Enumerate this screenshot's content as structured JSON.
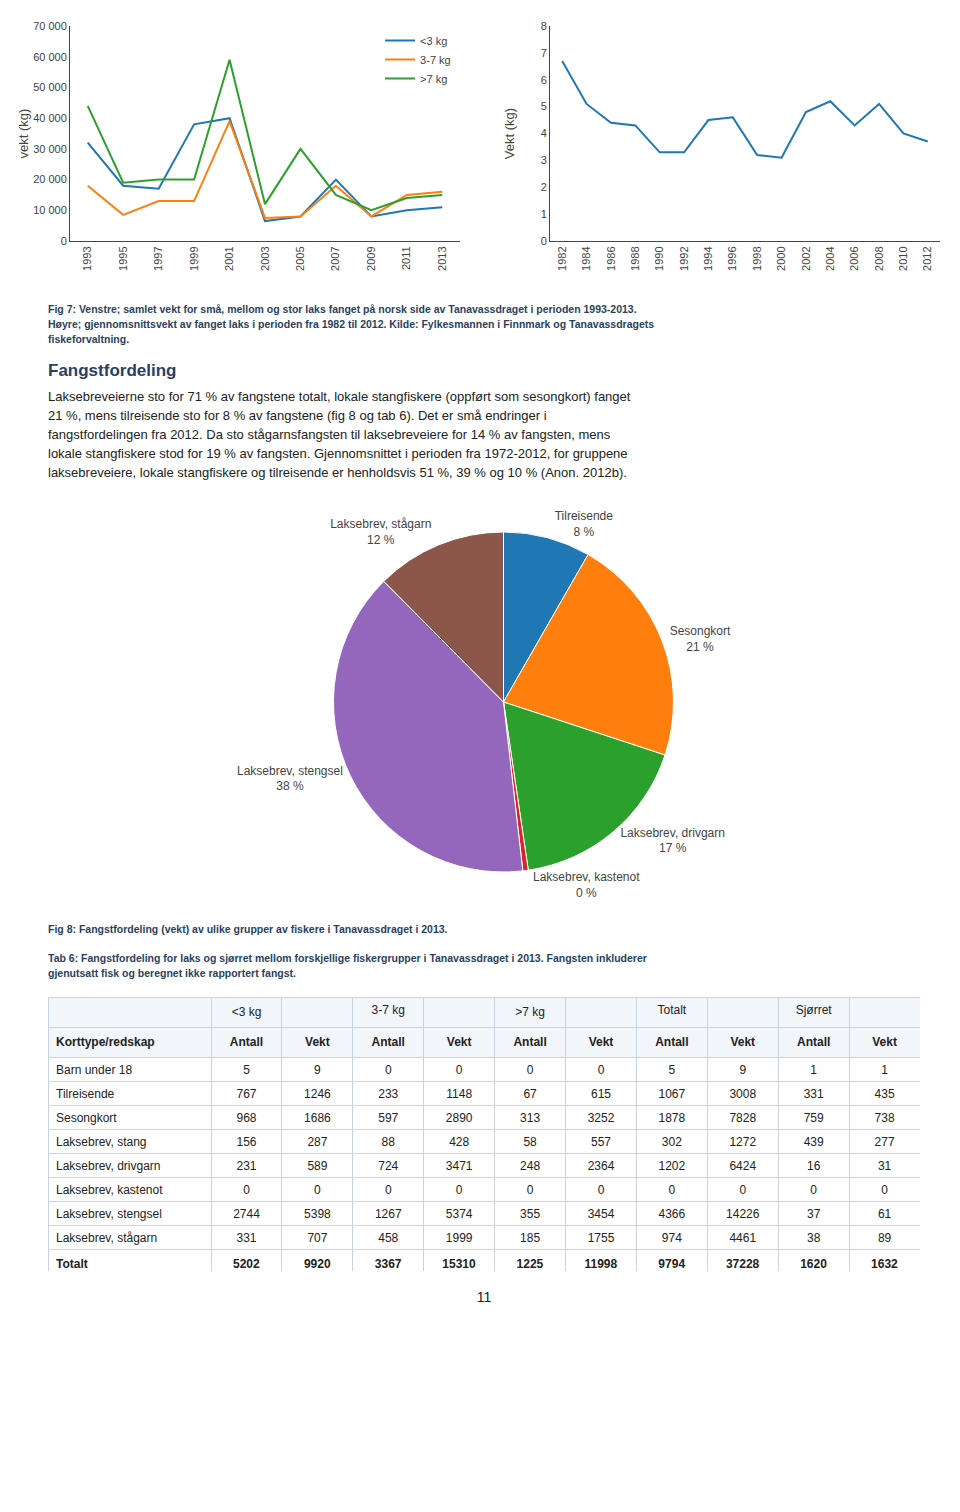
{
  "chart_data": [
    {
      "type": "line",
      "x": [
        1993,
        1995,
        1997,
        1999,
        2001,
        2003,
        2005,
        2007,
        2009,
        2011,
        2013
      ],
      "series": [
        {
          "name": "<3 kg",
          "values": [
            32000,
            18000,
            17000,
            38000,
            40000,
            6500,
            8000,
            20000,
            8000,
            10000,
            11000
          ]
        },
        {
          "name": "3-7 kg",
          "values": [
            18000,
            8500,
            13000,
            13000,
            39000,
            7500,
            8000,
            18000,
            8000,
            15000,
            16000
          ]
        },
        {
          "name": ">7 kg",
          "values": [
            44000,
            19000,
            20000,
            20000,
            59000,
            12000,
            30000,
            15000,
            10000,
            14000,
            15000
          ]
        }
      ],
      "ylabel": "vekt (kg)",
      "xlim": [
        1992,
        2014
      ],
      "xticks": [
        1993,
        1995,
        1997,
        1999,
        2001,
        2003,
        2005,
        2007,
        2009,
        2011,
        2013
      ],
      "ylim": [
        0,
        70000
      ],
      "yticks": [
        0,
        {
          "value": 10000,
          "label": "10 000"
        },
        {
          "value": 20000,
          "label": "20 000"
        },
        {
          "value": 30000,
          "label": "30 000"
        },
        {
          "value": 40000,
          "label": "40 000"
        },
        {
          "value": 50000,
          "label": "50 000"
        },
        {
          "value": 60000,
          "label": "60 000"
        },
        {
          "value": 70000,
          "label": "70 000"
        }
      ],
      "legend": "upper right",
      "grid": false
    },
    {
      "type": "line",
      "x": [
        1982,
        1984,
        1986,
        1988,
        1990,
        1992,
        1994,
        1996,
        1998,
        2000,
        2002,
        2004,
        2006,
        2008,
        2010,
        2012
      ],
      "series": [
        {
          "values": [
            6.7,
            5.1,
            4.4,
            4.3,
            3.3,
            3.3,
            4.5,
            4.6,
            3.2,
            3.1,
            4.8,
            5.2,
            4.3,
            5.1,
            4.0,
            3.7
          ]
        }
      ],
      "ylabel": "Vekt (kg)",
      "xlim": [
        1981,
        2013
      ],
      "xticks": [
        1982,
        1984,
        1986,
        1988,
        1990,
        1992,
        1994,
        1996,
        1998,
        2000,
        2002,
        2004,
        2006,
        2008,
        2010,
        2012
      ],
      "ylim": [
        0,
        8
      ],
      "yticks": [
        0,
        1,
        2,
        3,
        4,
        5,
        6,
        7,
        8
      ],
      "grid": false,
      "annotations": [
        "Fig 7: Venstre; samlet vekt for små, mellom og stor laks fanget på norsk side av Tanavassdraget i perioden 1993-2013.",
        "Høyre; gjennomsnittsvekt av fanget laks i perioden fra 1982 til 2012. Kilde: Fylkesmannen i Finnmark og Tanavassdragets",
        "fiskeforvaltning."
      ]
    },
    {
      "type": "pie",
      "title": "Fangstfordeling",
      "subtitle": [
        "Laksebreveierne sto for 71 % av fangstene totalt, lokale stangfiskere (oppført som sesongkort) fanget",
        "21 %, mens tilreisende sto for 8 % av fangstene (fig 8 og tab 6). Det er små endringer i",
        "fangstfordelingen fra 2012. Da sto stågarnsfangsten til laksebreveiere for 14 % av fangsten, mens",
        "lokale stangfiskere stod for 19 % av fangsten. Gjennomsnittet i perioden fra 1972-2012, for gruppene",
        "laksebreveiere, lokale stangfiskere og tilreisende er henholdsvis 51 %, 39 % og 10 % (Anon. 2012b)."
      ],
      "categories": [
        "Tilreisende",
        "Sesongkort",
        "Laksebrev, drivgarn",
        "Laksebrev, kastenot",
        "Laksebrev, stengsel",
        "Laksebrev, stågarn"
      ],
      "values": [
        8,
        21,
        17,
        0.5,
        38,
        12
      ],
      "value_labels": [
        "8 %",
        "21 %",
        "17 %",
        "0 %",
        "38 %",
        "12 %"
      ],
      "annotations": [
        "Fig 8: Fangstfordeling (vekt) av ulike grupper av fiskere i Tanavassdraget i 2013."
      ]
    },
    {
      "type": "table",
      "title": "Tab 6: Fangstfordeling for laks og sjørret mellom forskjellige fiskergrupper i Tanavassdraget i 2013. Fangsten inkluderer",
      "subtitle": "gjenutsatt fisk og beregnet ikke rapportert fangst.",
      "group_headers": [
        "<3 kg",
        "3-7 kg",
        ">7 kg",
        "Totalt",
        "Sjørret"
      ],
      "columns": [
        "Korttype/redskap",
        "Antall",
        "Vekt",
        "Antall",
        "Vekt",
        "Antall",
        "Vekt",
        "Antall",
        "Vekt",
        "Antall",
        "Vekt"
      ],
      "rows": [
        [
          "Barn under 18",
          "5",
          "9",
          "0",
          "0",
          "0",
          "0",
          "5",
          "9",
          "1",
          "1"
        ],
        [
          "Tilreisende",
          "767",
          "1246",
          "233",
          "1148",
          "67",
          "615",
          "1067",
          "3008",
          "331",
          "435"
        ],
        [
          "Sesongkort",
          "968",
          "1686",
          "597",
          "2890",
          "313",
          "3252",
          "1878",
          "7828",
          "759",
          "738"
        ],
        [
          "Laksebrev, stang",
          "156",
          "287",
          "88",
          "428",
          "58",
          "557",
          "302",
          "1272",
          "439",
          "277"
        ],
        [
          "Laksebrev, drivgarn",
          "231",
          "589",
          "724",
          "3471",
          "248",
          "2364",
          "1202",
          "6424",
          "16",
          "31"
        ],
        [
          "Laksebrev, kastenot",
          "0",
          "0",
          "0",
          "0",
          "0",
          "0",
          "0",
          "0",
          "0",
          "0"
        ],
        [
          "Laksebrev, stengsel",
          "2744",
          "5398",
          "1267",
          "5374",
          "355",
          "3454",
          "4366",
          "14226",
          "37",
          "61"
        ],
        [
          "Laksebrev, stågarn",
          "331",
          "707",
          "458",
          "1999",
          "185",
          "1755",
          "974",
          "4461",
          "38",
          "89"
        ]
      ],
      "total": [
        "Totalt",
        "5202",
        "9920",
        "3367",
        "15310",
        "1225",
        "11998",
        "9794",
        "37228",
        "1620",
        "1632"
      ],
      "annotations": [
        "11"
      ]
    }
  ]
}
